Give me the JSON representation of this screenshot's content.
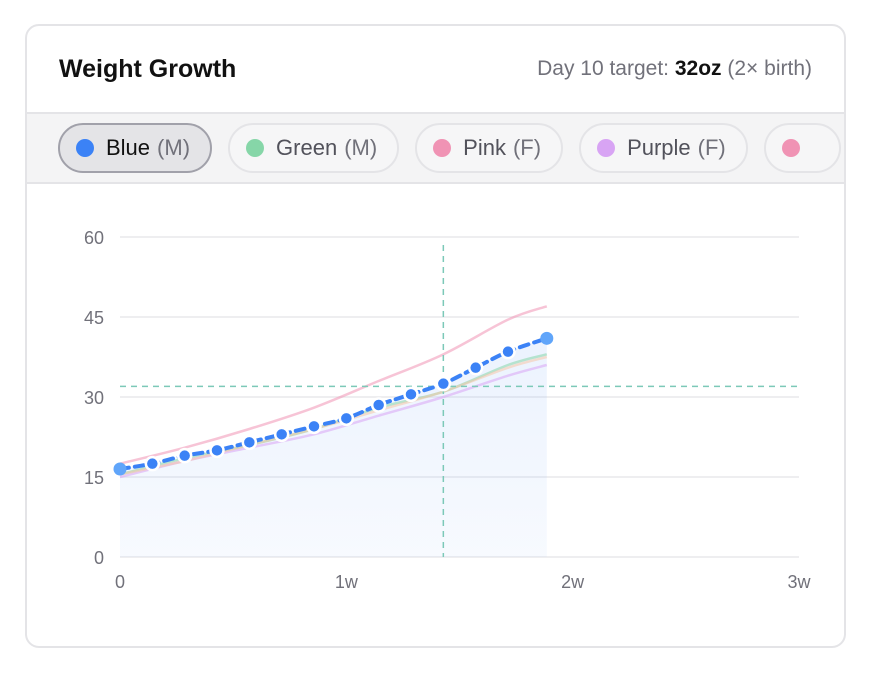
{
  "header": {
    "title": "Weight Growth",
    "target_prefix": "Day 10 target:",
    "target_value": "32oz",
    "target_suffix": "(2× birth)"
  },
  "pills": [
    {
      "name": "Blue",
      "sex": "(M)",
      "color": "#3b82f6",
      "active": true
    },
    {
      "name": "Green",
      "sex": "(M)",
      "color": "#86d6a8",
      "active": false
    },
    {
      "name": "Pink",
      "sex": "(F)",
      "color": "#f093b4",
      "active": false
    },
    {
      "name": "Purple",
      "sex": "(F)",
      "color": "#d8a4f4",
      "active": false
    },
    {
      "name": "",
      "sex": "",
      "color": "#f093b4",
      "active": false
    }
  ],
  "chart_data": {
    "type": "line",
    "x_unit": "days",
    "xlim": [
      0,
      21
    ],
    "ylim": [
      0,
      60
    ],
    "yticks": [
      0,
      15,
      30,
      45,
      60
    ],
    "xticks": [
      {
        "value": 0,
        "label": "0"
      },
      {
        "value": 7,
        "label": "1w"
      },
      {
        "value": 14,
        "label": "2w"
      },
      {
        "value": 21,
        "label": "3w"
      }
    ],
    "grid": true,
    "target_line": {
      "x": 10,
      "y": 32
    },
    "series": [
      {
        "name": "Blue",
        "color": "#3b82f6",
        "highlight": true,
        "x": [
          0,
          1,
          2,
          3,
          4,
          5,
          6,
          7,
          8,
          9,
          10,
          11,
          12,
          13.2
        ],
        "y": [
          16.5,
          17.5,
          19,
          20,
          21.5,
          23,
          24.5,
          26,
          28.5,
          30.5,
          32.5,
          35.5,
          38.5,
          41
        ]
      },
      {
        "name": "Green",
        "color": "#86d6a8",
        "highlight": false,
        "x": [
          0,
          2,
          4,
          6,
          8,
          10,
          12,
          13.2
        ],
        "y": [
          15.5,
          18.5,
          21,
          24,
          28,
          31,
          36,
          38
        ]
      },
      {
        "name": "Pink",
        "color": "#f093b4",
        "highlight": false,
        "x": [
          0,
          2,
          4,
          6,
          8,
          10,
          12,
          13.2
        ],
        "y": [
          17.5,
          20.5,
          24,
          28,
          33,
          38,
          44.5,
          47
        ]
      },
      {
        "name": "Purple",
        "color": "#d8a4f4",
        "highlight": false,
        "x": [
          0,
          2,
          4,
          6,
          8,
          10,
          12,
          13.2
        ],
        "y": [
          15,
          18,
          20.5,
          23,
          26.5,
          30,
          34,
          36
        ]
      },
      {
        "name": "",
        "color": "#f6c6a8",
        "highlight": false,
        "x": [
          0,
          2,
          4,
          6,
          8,
          10,
          12,
          13.2
        ],
        "y": [
          15.5,
          18,
          21,
          24,
          27.5,
          31,
          35.5,
          37.5
        ]
      }
    ]
  }
}
